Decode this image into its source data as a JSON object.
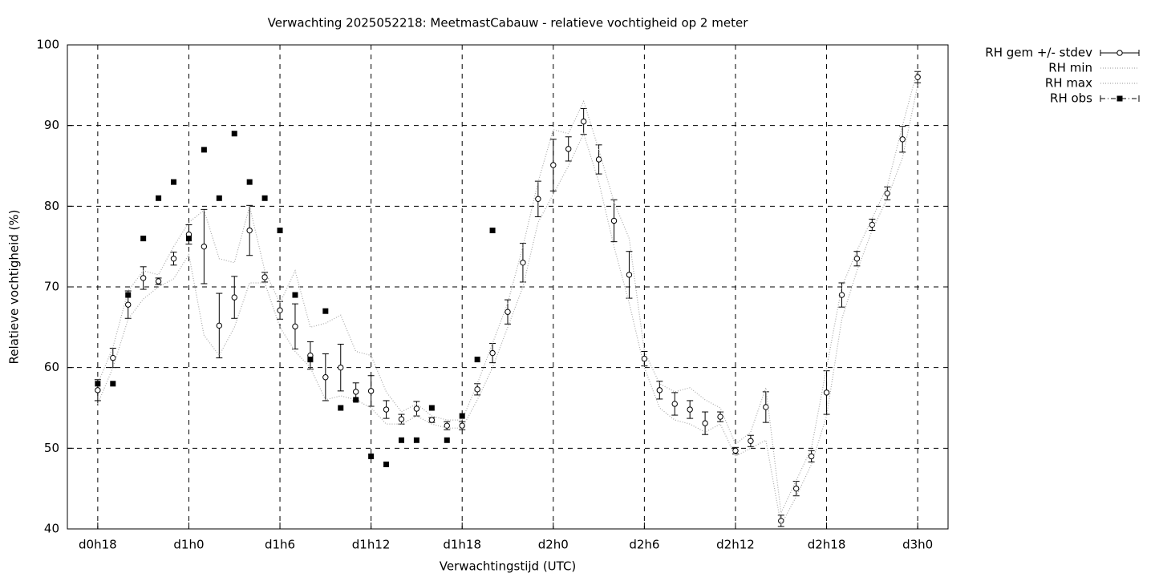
{
  "chart_data": {
    "type": "errorbar",
    "title": "Verwachting 2025052218: MeetmastCabauw - relatieve vochtigheid op 2 meter",
    "xlabel": "Verwachtingstijd (UTC)",
    "ylabel": "Relatieve vochtigheid (%)",
    "x": [
      18,
      19,
      20,
      21,
      22,
      23,
      24,
      25,
      26,
      27,
      28,
      29,
      30,
      31,
      32,
      33,
      34,
      35,
      36,
      37,
      38,
      39,
      40,
      41,
      42,
      43,
      44,
      45,
      46,
      47,
      48,
      49,
      50,
      51,
      52,
      53,
      54,
      55,
      56,
      57,
      58,
      59,
      60,
      61,
      62,
      63,
      64,
      65,
      66,
      67,
      68,
      69,
      70,
      71,
      72
    ],
    "xlim": [
      16,
      74
    ],
    "xticks": [
      {
        "value": 18,
        "label": "d0h18"
      },
      {
        "value": 24,
        "label": "d1h0"
      },
      {
        "value": 30,
        "label": "d1h6"
      },
      {
        "value": 36,
        "label": "d1h12"
      },
      {
        "value": 42,
        "label": "d1h18"
      },
      {
        "value": 48,
        "label": "d2h0"
      },
      {
        "value": 54,
        "label": "d2h6"
      },
      {
        "value": 60,
        "label": "d2h12"
      },
      {
        "value": 66,
        "label": "d2h18"
      },
      {
        "value": 72,
        "label": "d3h0"
      }
    ],
    "ylim": [
      40,
      100
    ],
    "yticks": [
      40,
      50,
      60,
      70,
      80,
      90,
      100
    ],
    "grid": true,
    "legend": "outside-top-right",
    "series": [
      {
        "name": "RH gem +/- stdev",
        "color": "#000000",
        "style": "errorbars",
        "values": [
          57.2,
          61.2,
          67.8,
          71.1,
          70.7,
          73.5,
          76.5,
          75.0,
          65.2,
          68.7,
          77.0,
          71.2,
          67.1,
          65.1,
          61.5,
          58.8,
          60.0,
          57.0,
          57.1,
          54.8,
          53.6,
          54.9,
          53.5,
          52.8,
          52.8,
          57.3,
          61.8,
          66.9,
          73.0,
          80.9,
          85.1,
          87.1,
          90.5,
          85.8,
          78.2,
          71.5,
          61.1,
          57.2,
          55.5,
          54.8,
          53.1,
          53.9,
          49.7,
          50.9,
          55.1,
          41.0,
          45.0,
          49.0,
          56.9,
          69.0,
          73.5,
          77.7,
          81.6,
          88.3,
          96.0
        ],
        "errors": [
          1.3,
          1.2,
          1.7,
          1.4,
          0.4,
          0.8,
          1.2,
          4.6,
          4.0,
          2.6,
          3.1,
          0.6,
          1.1,
          2.8,
          1.7,
          2.9,
          2.9,
          1.1,
          1.9,
          1.1,
          0.6,
          0.9,
          0.3,
          0.5,
          0.5,
          0.7,
          1.2,
          1.5,
          2.4,
          2.2,
          3.2,
          1.5,
          1.6,
          1.8,
          2.6,
          2.9,
          0.9,
          1.1,
          1.4,
          1.1,
          1.4,
          0.6,
          0.4,
          0.7,
          1.9,
          0.7,
          0.9,
          0.7,
          2.7,
          1.5,
          0.9,
          0.7,
          0.8,
          1.6,
          0.7
        ]
      },
      {
        "name": "RH min",
        "color": "#aaaaaa",
        "style": "dotted",
        "values": [
          55.5,
          60,
          66,
          68.5,
          70,
          71,
          74,
          64,
          61.5,
          65,
          70.5,
          70.5,
          65,
          62,
          60,
          56,
          56.5,
          56,
          55,
          53,
          53,
          54,
          53,
          52.5,
          52.5,
          56,
          60,
          65,
          70,
          78,
          81.5,
          85,
          89,
          83,
          75,
          68,
          60,
          55,
          53.5,
          53,
          52,
          53,
          49,
          50,
          51,
          40.5,
          44,
          48,
          54,
          66,
          72,
          77,
          81,
          86,
          95
        ]
      },
      {
        "name": "RH max",
        "color": "#aaaaaa",
        "style": "dotted",
        "values": [
          58,
          62.5,
          69.5,
          72,
          71.5,
          75,
          78,
          79.5,
          73.5,
          73,
          80,
          72,
          68,
          72,
          65,
          65.5,
          66.5,
          62,
          61.5,
          57,
          54.5,
          55.5,
          54,
          53.5,
          53.5,
          58,
          63,
          68,
          75,
          83,
          89.5,
          89,
          93,
          87,
          80.5,
          76,
          62,
          58,
          57,
          57.5,
          56,
          55,
          50.5,
          52,
          57.5,
          42,
          46,
          50,
          60,
          70,
          74.5,
          78.5,
          82.5,
          90,
          97
        ]
      },
      {
        "name": "RH obs",
        "color": "#000000",
        "style": "squares",
        "x": [
          18,
          19,
          20,
          21,
          22,
          23,
          24,
          25,
          26,
          27,
          28,
          29,
          30,
          31,
          32,
          33,
          34,
          35,
          36,
          37,
          38,
          39,
          40,
          41,
          42,
          43,
          44
        ],
        "values": [
          58,
          58,
          69,
          76,
          81,
          83,
          76,
          87,
          81,
          89,
          83,
          81,
          77,
          69,
          61,
          67,
          55,
          56,
          49,
          48,
          51,
          51,
          55,
          51,
          54,
          61,
          77
        ]
      }
    ]
  }
}
